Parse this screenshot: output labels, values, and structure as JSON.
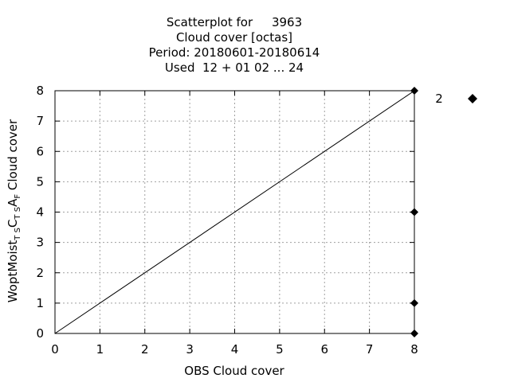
{
  "chart_data": {
    "type": "scatter",
    "title_lines": [
      "Scatterplot for     3963",
      "Cloud cover [octas]",
      "Period: 20180601-20180614",
      "Used  12 + 01 02 ... 24"
    ],
    "xlabel": "OBS Cloud cover",
    "ylabel": {
      "main": "WoptMoist",
      "sub1": "T S",
      "mid1": "C",
      "sub2": "T S",
      "mid2": "A",
      "sub3": "F",
      "tail": " Cloud cover"
    },
    "xlim": [
      0,
      8
    ],
    "ylim": [
      0,
      8
    ],
    "xticks": [
      "0",
      "1",
      "2",
      "3",
      "4",
      "5",
      "6",
      "7",
      "8"
    ],
    "yticks": [
      "0",
      "1",
      "2",
      "3",
      "4",
      "5",
      "6",
      "7",
      "8"
    ],
    "grid": true,
    "diagonal": [
      [
        0,
        0
      ],
      [
        8,
        8
      ]
    ],
    "points": [
      {
        "x": 8,
        "y": 8
      },
      {
        "x": 8,
        "y": 4
      },
      {
        "x": 8,
        "y": 1
      },
      {
        "x": 8,
        "y": 0
      }
    ],
    "legend": {
      "label": "2",
      "marker": "diamond",
      "placement": "top-right"
    },
    "colors": {
      "points": "#000000",
      "grid": "#a0a0a0",
      "axes": "#000000"
    }
  }
}
